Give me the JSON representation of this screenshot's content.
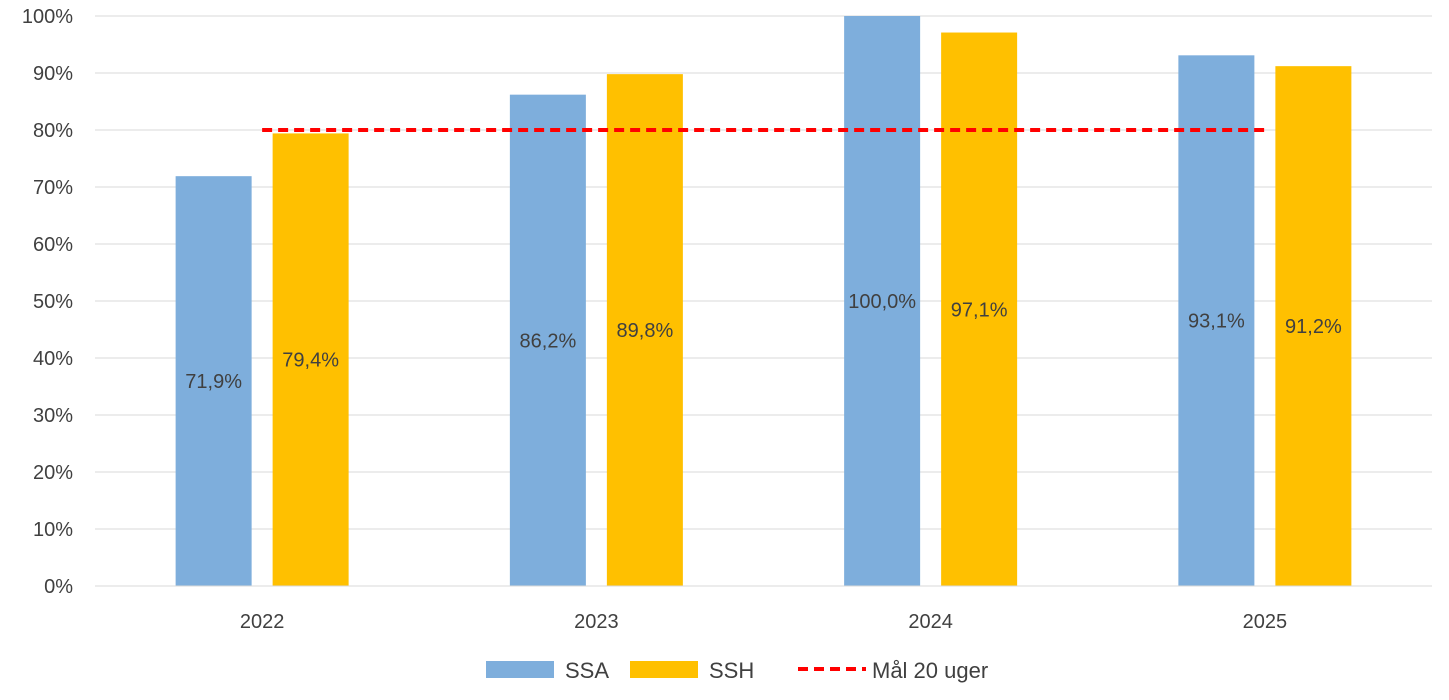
{
  "chart_data": {
    "type": "bar",
    "categories": [
      "2022",
      "2023",
      "2024",
      "2025"
    ],
    "series": [
      {
        "name": "SSA",
        "values": [
          71.9,
          86.2,
          100.0,
          93.1
        ],
        "labels": [
          "71,9%",
          "86,2%",
          "100,0%",
          "93,1%"
        ],
        "color": "#7EAEDC"
      },
      {
        "name": "SSH",
        "values": [
          79.4,
          89.8,
          97.1,
          91.2
        ],
        "labels": [
          "79,4%",
          "89,8%",
          "97,1%",
          "91,2%"
        ],
        "color": "#FFC000"
      }
    ],
    "target_line": {
      "name": "Mål 20 uger",
      "value": 80,
      "color": "#FF0000",
      "style": "dashed"
    },
    "ylim": [
      0,
      100
    ],
    "yticks": [
      "0%",
      "10%",
      "20%",
      "30%",
      "40%",
      "50%",
      "60%",
      "70%",
      "80%",
      "90%",
      "100%"
    ],
    "grid": true,
    "legend_position": "bottom"
  }
}
